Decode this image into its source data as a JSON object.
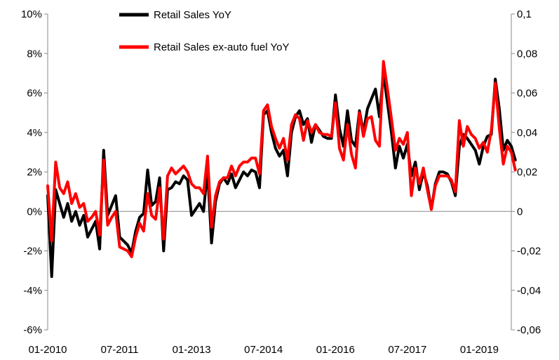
{
  "chart_data": {
    "type": "line",
    "title": "",
    "xlabel": "",
    "ylabel": "",
    "legend_position": "top-center",
    "grid": false,
    "y_left": {
      "min": -0.06,
      "max": 0.1,
      "step": 0.02,
      "tick_labels": [
        "-6%",
        "-4%",
        "-2%",
        "0%",
        "2%",
        "4%",
        "6%",
        "8%",
        "10%"
      ]
    },
    "y_right": {
      "min": -0.06,
      "max": 0.1,
      "step": 0.02,
      "tick_labels": [
        "-0,06",
        "-0,04",
        "-0,02",
        "0",
        "0,02",
        "0,04",
        "0,06",
        "0,08",
        "0,1"
      ]
    },
    "x_range": [
      "2010-01",
      "2019-09"
    ],
    "x_tick_labels": [
      {
        "date": "2010-01",
        "label": "01-2010"
      },
      {
        "date": "2011-07",
        "label": "07-2011"
      },
      {
        "date": "2013-01",
        "label": "01-2013"
      },
      {
        "date": "2014-07",
        "label": "07-2014"
      },
      {
        "date": "2016-01",
        "label": "01-2016"
      },
      {
        "date": "2017-07",
        "label": "07-2017"
      },
      {
        "date": "2019-01",
        "label": "01-2019"
      }
    ],
    "series": [
      {
        "name": "Retail Sales YoY",
        "color": "#000000",
        "points": [
          [
            "2010-01",
            0.008
          ],
          [
            "2010-02",
            -0.033
          ],
          [
            "2010-03",
            0.011
          ],
          [
            "2010-04",
            0.004
          ],
          [
            "2010-05",
            -0.003
          ],
          [
            "2010-06",
            0.004
          ],
          [
            "2010-07",
            -0.005
          ],
          [
            "2010-08",
            0.0
          ],
          [
            "2010-09",
            -0.007
          ],
          [
            "2010-10",
            -0.002
          ],
          [
            "2010-11",
            -0.013
          ],
          [
            "2010-12",
            -0.009
          ],
          [
            "2011-01",
            -0.005
          ],
          [
            "2011-02",
            -0.019
          ],
          [
            "2011-03",
            0.031
          ],
          [
            "2011-04",
            -0.002
          ],
          [
            "2011-05",
            0.003
          ],
          [
            "2011-06",
            0.008
          ],
          [
            "2011-07",
            -0.013
          ],
          [
            "2011-08",
            -0.015
          ],
          [
            "2011-09",
            -0.017
          ],
          [
            "2011-10",
            -0.021
          ],
          [
            "2011-11",
            -0.01
          ],
          [
            "2011-12",
            -0.003
          ],
          [
            "2012-01",
            -0.001
          ],
          [
            "2012-02",
            0.021
          ],
          [
            "2012-03",
            0.003
          ],
          [
            "2012-04",
            0.005
          ],
          [
            "2012-05",
            0.017
          ],
          [
            "2012-06",
            -0.02
          ],
          [
            "2012-07",
            0.011
          ],
          [
            "2012-08",
            0.012
          ],
          [
            "2012-09",
            0.015
          ],
          [
            "2012-10",
            0.014
          ],
          [
            "2012-11",
            0.018
          ],
          [
            "2012-12",
            0.016
          ],
          [
            "2013-01",
            -0.002
          ],
          [
            "2013-02",
            0.001
          ],
          [
            "2013-03",
            0.004
          ],
          [
            "2013-04",
            0.0
          ],
          [
            "2013-05",
            0.021
          ],
          [
            "2013-06",
            -0.016
          ],
          [
            "2013-07",
            0.005
          ],
          [
            "2013-08",
            0.014
          ],
          [
            "2013-09",
            0.017
          ],
          [
            "2013-10",
            0.014
          ],
          [
            "2013-11",
            0.019
          ],
          [
            "2013-12",
            0.012
          ],
          [
            "2014-01",
            0.016
          ],
          [
            "2014-02",
            0.02
          ],
          [
            "2014-03",
            0.018
          ],
          [
            "2014-04",
            0.021
          ],
          [
            "2014-05",
            0.02
          ],
          [
            "2014-06",
            0.012
          ],
          [
            "2014-07",
            0.049
          ],
          [
            "2014-08",
            0.051
          ],
          [
            "2014-09",
            0.04
          ],
          [
            "2014-10",
            0.032
          ],
          [
            "2014-11",
            0.028
          ],
          [
            "2014-12",
            0.031
          ],
          [
            "2015-01",
            0.018
          ],
          [
            "2015-02",
            0.04
          ],
          [
            "2015-03",
            0.048
          ],
          [
            "2015-04",
            0.051
          ],
          [
            "2015-05",
            0.044
          ],
          [
            "2015-06",
            0.047
          ],
          [
            "2015-07",
            0.035
          ],
          [
            "2015-08",
            0.044
          ],
          [
            "2015-09",
            0.041
          ],
          [
            "2015-10",
            0.038
          ],
          [
            "2015-11",
            0.037
          ],
          [
            "2015-12",
            0.037
          ],
          [
            "2016-01",
            0.059
          ],
          [
            "2016-02",
            0.042
          ],
          [
            "2016-03",
            0.033
          ],
          [
            "2016-04",
            0.051
          ],
          [
            "2016-05",
            0.036
          ],
          [
            "2016-06",
            0.033
          ],
          [
            "2016-07",
            0.051
          ],
          [
            "2016-08",
            0.04
          ],
          [
            "2016-09",
            0.052
          ],
          [
            "2016-10",
            0.057
          ],
          [
            "2016-11",
            0.062
          ],
          [
            "2016-12",
            0.048
          ],
          [
            "2017-01",
            0.07
          ],
          [
            "2017-02",
            0.055
          ],
          [
            "2017-03",
            0.04
          ],
          [
            "2017-04",
            0.022
          ],
          [
            "2017-05",
            0.033
          ],
          [
            "2017-06",
            0.027
          ],
          [
            "2017-07",
            0.034
          ],
          [
            "2017-08",
            0.018
          ],
          [
            "2017-09",
            0.025
          ],
          [
            "2017-10",
            0.011
          ],
          [
            "2017-11",
            0.02
          ],
          [
            "2017-12",
            0.013
          ],
          [
            "2018-01",
            0.001
          ],
          [
            "2018-02",
            0.014
          ],
          [
            "2018-03",
            0.02
          ],
          [
            "2018-04",
            0.02
          ],
          [
            "2018-05",
            0.019
          ],
          [
            "2018-06",
            0.015
          ],
          [
            "2018-07",
            0.008
          ],
          [
            "2018-08",
            0.033
          ],
          [
            "2018-09",
            0.039
          ],
          [
            "2018-10",
            0.037
          ],
          [
            "2018-11",
            0.034
          ],
          [
            "2018-12",
            0.031
          ],
          [
            "2019-01",
            0.024
          ],
          [
            "2019-02",
            0.033
          ],
          [
            "2019-03",
            0.038
          ],
          [
            "2019-04",
            0.039
          ],
          [
            "2019-05",
            0.067
          ],
          [
            "2019-06",
            0.052
          ],
          [
            "2019-07",
            0.031
          ],
          [
            "2019-08",
            0.036
          ],
          [
            "2019-09",
            0.033
          ],
          [
            "2019-10",
            0.026
          ]
        ]
      },
      {
        "name": "Retail Sales ex-auto fuel YoY",
        "color": "#ff0000",
        "points": [
          [
            "2010-01",
            0.013
          ],
          [
            "2010-02",
            -0.015
          ],
          [
            "2010-03",
            0.025
          ],
          [
            "2010-04",
            0.012
          ],
          [
            "2010-05",
            0.009
          ],
          [
            "2010-06",
            0.015
          ],
          [
            "2010-07",
            0.004
          ],
          [
            "2010-08",
            0.009
          ],
          [
            "2010-09",
            0.002
          ],
          [
            "2010-10",
            0.004
          ],
          [
            "2010-11",
            -0.005
          ],
          [
            "2010-12",
            -0.003
          ],
          [
            "2011-01",
            0.0
          ],
          [
            "2011-02",
            -0.012
          ],
          [
            "2011-03",
            0.026
          ],
          [
            "2011-04",
            -0.007
          ],
          [
            "2011-05",
            -0.003
          ],
          [
            "2011-06",
            0.0
          ],
          [
            "2011-07",
            -0.018
          ],
          [
            "2011-08",
            -0.019
          ],
          [
            "2011-09",
            -0.02
          ],
          [
            "2011-10",
            -0.023
          ],
          [
            "2011-11",
            -0.013
          ],
          [
            "2011-12",
            -0.006
          ],
          [
            "2012-01",
            -0.01
          ],
          [
            "2012-02",
            0.009
          ],
          [
            "2012-03",
            -0.002
          ],
          [
            "2012-04",
            -0.004
          ],
          [
            "2012-05",
            0.012
          ],
          [
            "2012-06",
            -0.014
          ],
          [
            "2012-07",
            0.018
          ],
          [
            "2012-08",
            0.022
          ],
          [
            "2012-09",
            0.019
          ],
          [
            "2012-10",
            0.021
          ],
          [
            "2012-11",
            0.023
          ],
          [
            "2012-12",
            0.02
          ],
          [
            "2013-01",
            0.014
          ],
          [
            "2013-02",
            0.012
          ],
          [
            "2013-03",
            0.012
          ],
          [
            "2013-04",
            0.009
          ],
          [
            "2013-05",
            0.028
          ],
          [
            "2013-06",
            -0.008
          ],
          [
            "2013-07",
            0.008
          ],
          [
            "2013-08",
            0.015
          ],
          [
            "2013-09",
            0.017
          ],
          [
            "2013-10",
            0.017
          ],
          [
            "2013-11",
            0.023
          ],
          [
            "2013-12",
            0.018
          ],
          [
            "2014-01",
            0.023
          ],
          [
            "2014-02",
            0.025
          ],
          [
            "2014-03",
            0.025
          ],
          [
            "2014-04",
            0.027
          ],
          [
            "2014-05",
            0.027
          ],
          [
            "2014-06",
            0.019
          ],
          [
            "2014-07",
            0.051
          ],
          [
            "2014-08",
            0.054
          ],
          [
            "2014-09",
            0.043
          ],
          [
            "2014-10",
            0.037
          ],
          [
            "2014-11",
            0.032
          ],
          [
            "2014-12",
            0.037
          ],
          [
            "2015-01",
            0.026
          ],
          [
            "2015-02",
            0.044
          ],
          [
            "2015-03",
            0.049
          ],
          [
            "2015-04",
            0.047
          ],
          [
            "2015-05",
            0.036
          ],
          [
            "2015-06",
            0.046
          ],
          [
            "2015-07",
            0.04
          ],
          [
            "2015-08",
            0.044
          ],
          [
            "2015-09",
            0.04
          ],
          [
            "2015-10",
            0.039
          ],
          [
            "2015-11",
            0.039
          ],
          [
            "2015-12",
            0.038
          ],
          [
            "2016-01",
            0.055
          ],
          [
            "2016-02",
            0.032
          ],
          [
            "2016-03",
            0.026
          ],
          [
            "2016-04",
            0.044
          ],
          [
            "2016-05",
            0.029
          ],
          [
            "2016-06",
            0.022
          ],
          [
            "2016-07",
            0.05
          ],
          [
            "2016-08",
            0.038
          ],
          [
            "2016-09",
            0.047
          ],
          [
            "2016-10",
            0.048
          ],
          [
            "2016-11",
            0.036
          ],
          [
            "2016-12",
            0.033
          ],
          [
            "2017-01",
            0.076
          ],
          [
            "2017-02",
            0.062
          ],
          [
            "2017-03",
            0.047
          ],
          [
            "2017-04",
            0.031
          ],
          [
            "2017-05",
            0.037
          ],
          [
            "2017-06",
            0.034
          ],
          [
            "2017-07",
            0.04
          ],
          [
            "2017-08",
            0.008
          ],
          [
            "2017-09",
            0.022
          ],
          [
            "2017-10",
            0.014
          ],
          [
            "2017-11",
            0.022
          ],
          [
            "2017-12",
            0.011
          ],
          [
            "2018-01",
            0.001
          ],
          [
            "2018-02",
            0.013
          ],
          [
            "2018-03",
            0.018
          ],
          [
            "2018-04",
            0.018
          ],
          [
            "2018-05",
            0.018
          ],
          [
            "2018-06",
            0.016
          ],
          [
            "2018-07",
            0.01
          ],
          [
            "2018-08",
            0.046
          ],
          [
            "2018-09",
            0.033
          ],
          [
            "2018-10",
            0.043
          ],
          [
            "2018-11",
            0.039
          ],
          [
            "2018-12",
            0.037
          ],
          [
            "2019-01",
            0.032
          ],
          [
            "2019-02",
            0.035
          ],
          [
            "2019-03",
            0.03
          ],
          [
            "2019-04",
            0.041
          ],
          [
            "2019-05",
            0.065
          ],
          [
            "2019-06",
            0.042
          ],
          [
            "2019-07",
            0.024
          ],
          [
            "2019-08",
            0.033
          ],
          [
            "2019-09",
            0.03
          ],
          [
            "2019-10",
            0.021
          ]
        ]
      }
    ]
  }
}
